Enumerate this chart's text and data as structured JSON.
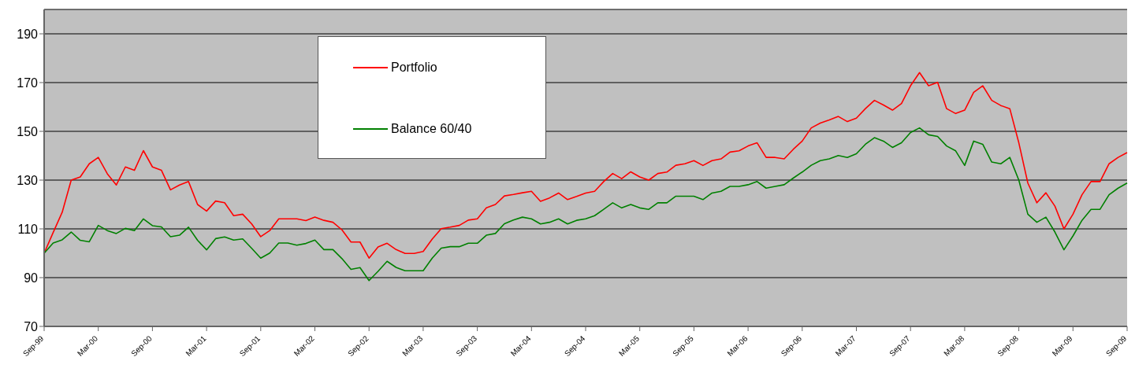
{
  "chart_data": {
    "type": "line",
    "categories": [
      "Sep-99",
      null,
      null,
      null,
      null,
      null,
      "Mar-00",
      null,
      null,
      null,
      null,
      null,
      "Sep-00",
      null,
      null,
      null,
      null,
      null,
      "Mar-01",
      null,
      null,
      null,
      null,
      null,
      "Sep-01",
      null,
      null,
      null,
      null,
      null,
      "Mar-02",
      null,
      null,
      null,
      null,
      null,
      "Sep-02",
      null,
      null,
      null,
      null,
      null,
      "Mar-03",
      null,
      null,
      null,
      null,
      null,
      "Sep-03",
      null,
      null,
      null,
      null,
      null,
      "Mar-04",
      null,
      null,
      null,
      null,
      null,
      "Sep-04",
      null,
      null,
      null,
      null,
      null,
      "Mar-05",
      null,
      null,
      null,
      null,
      null,
      "Sep-05",
      null,
      null,
      null,
      null,
      null,
      "Mar-06",
      null,
      null,
      null,
      null,
      null,
      "Sep-06",
      null,
      null,
      null,
      null,
      null,
      "Mar-07",
      null,
      null,
      null,
      null,
      null,
      "Sep-07",
      null,
      null,
      null,
      null,
      null,
      "Mar-08",
      null,
      null,
      null,
      null,
      null,
      "Sep-08",
      null,
      null,
      null,
      null,
      null,
      "Mar-09",
      null,
      null,
      null,
      null,
      null,
      "Sep-09"
    ],
    "series": [
      {
        "name": "Portfolio",
        "color": "#ff0000",
        "values": [
          100,
          108.5,
          116.8,
          130,
          131.3,
          136.7,
          139.3,
          132.6,
          128,
          135.4,
          134,
          142.1,
          135.4,
          134,
          126,
          128,
          129.4,
          120,
          117.3,
          121.4,
          120.7,
          115.4,
          116,
          112,
          106.8,
          109.3,
          114.1,
          114.1,
          114.1,
          113.4,
          114.8,
          113.5,
          112.7,
          109.6,
          104.6,
          104.6,
          98,
          102.6,
          104.1,
          101.5,
          99.9,
          99.9,
          100.7,
          105.8,
          110.1,
          110.7,
          111.4,
          113.6,
          114.1,
          118.6,
          120,
          123.5,
          124.1,
          124.8,
          125.4,
          121.3,
          122.7,
          124.7,
          122,
          123.3,
          124.7,
          125.4,
          129.4,
          132.7,
          130.6,
          133.4,
          131.3,
          130,
          132.7,
          133.3,
          136.1,
          136.7,
          138,
          136,
          138,
          138.7,
          141.5,
          142,
          144,
          145.3,
          139.3,
          139.3,
          138.7,
          142.6,
          146,
          151.4,
          153.4,
          154.7,
          156.1,
          154,
          155.4,
          159.3,
          162.7,
          160.8,
          158.7,
          161.4,
          168.7,
          174.1,
          168.7,
          170.1,
          159.3,
          157.3,
          158.7,
          166,
          168.7,
          162.7,
          160.6,
          159.3,
          145.3,
          128.8,
          120.7,
          124.8,
          119.3,
          110,
          116,
          124,
          129.4,
          129.4,
          136.7,
          139.3,
          141.3
        ]
      },
      {
        "name": "Balance 60/40",
        "color": "#008000",
        "values": [
          100,
          104.2,
          105.5,
          108.7,
          105.3,
          104.7,
          111.4,
          109.3,
          108.1,
          110.2,
          109.3,
          114.1,
          111.3,
          110.8,
          106.8,
          107.4,
          110.7,
          105.3,
          101.4,
          106,
          106.7,
          105.4,
          105.9,
          102,
          98,
          100.1,
          104.2,
          104.2,
          103.3,
          104,
          105.4,
          101.5,
          101.5,
          97.8,
          93.4,
          94.1,
          88.8,
          92.6,
          96.7,
          94.2,
          92.8,
          92.8,
          92.8,
          98,
          102.1,
          102.7,
          102.7,
          104.1,
          104.1,
          107.4,
          108.1,
          112.1,
          113.6,
          114.8,
          114.1,
          112,
          112.7,
          114.1,
          112,
          113.5,
          114.1,
          115.4,
          118,
          120.7,
          118.6,
          120,
          118.6,
          118,
          120.7,
          120.7,
          123.4,
          123.4,
          123.4,
          122,
          124.7,
          125.4,
          127.4,
          127.4,
          128.1,
          129.4,
          126.7,
          127.4,
          128.1,
          130.8,
          133.3,
          136.1,
          138,
          138.7,
          140.1,
          139.3,
          140.8,
          144.7,
          147.4,
          146,
          143.4,
          145.3,
          149.5,
          151.4,
          148.6,
          147.9,
          144,
          142,
          136,
          146,
          144.7,
          137.4,
          136.7,
          139.3,
          130,
          116,
          112.7,
          114.8,
          108.7,
          101.4,
          107.1,
          113.5,
          118,
          118,
          124,
          126.7,
          128.8
        ]
      }
    ],
    "ylim": [
      70,
      200
    ],
    "yticks": [
      70,
      90,
      110,
      130,
      150,
      170,
      190
    ],
    "grid": "y",
    "legend": "top",
    "marker": "none",
    "line_style": "solid"
  }
}
